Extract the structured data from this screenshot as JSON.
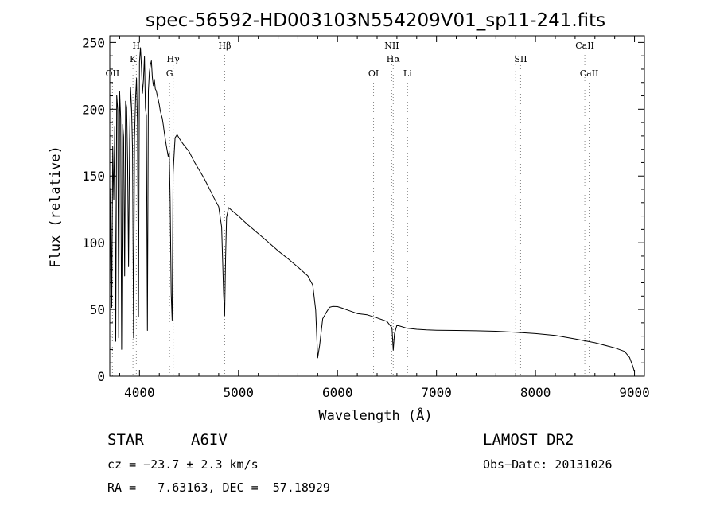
{
  "chart_data": {
    "type": "line",
    "title": "spec-56592-HD003103N554209V01_sp11-241.fits",
    "xlabel": "Wavelength (Å)",
    "ylabel": "Flux (relative)",
    "xlim": [
      3700,
      9100
    ],
    "ylim": [
      0,
      255
    ],
    "x_ticks": [
      4000,
      5000,
      6000,
      7000,
      8000,
      9000
    ],
    "y_ticks": [
      0,
      50,
      100,
      150,
      200,
      250
    ],
    "grid": false,
    "legend": "none",
    "line_color": "#000000",
    "marker_color": "#888888",
    "series": [
      {
        "x": [
          3700,
          3710,
          3720,
          3730,
          3740,
          3750,
          3760,
          3770,
          3780,
          3790,
          3800,
          3810,
          3820,
          3830,
          3840,
          3850,
          3860,
          3870,
          3880,
          3890,
          3900,
          3910,
          3920,
          3930,
          3940,
          3950,
          3960,
          3970,
          3980,
          3990,
          4000,
          4010,
          4020,
          4030,
          4040,
          4050,
          4060,
          4070,
          4080,
          4090,
          4100,
          4110,
          4120,
          4130,
          4140,
          4150,
          4160,
          4170,
          4180,
          4190,
          4200,
          4210,
          4220,
          4230,
          4240,
          4250,
          4260,
          4270,
          4280,
          4290,
          4300,
          4310,
          4320,
          4330,
          4340,
          4350,
          4360,
          4370,
          4380,
          4400,
          4420,
          4450,
          4500,
          4550,
          4600,
          4650,
          4700,
          4750,
          4800,
          4830,
          4850,
          4860,
          4870,
          4880,
          4900,
          4950,
          5000,
          5050,
          5100,
          5150,
          5200,
          5300,
          5400,
          5500,
          5600,
          5700,
          5750,
          5780,
          5800,
          5820,
          5850,
          5890,
          5920,
          5950,
          6000,
          6050,
          6100,
          6200,
          6300,
          6400,
          6500,
          6550,
          6563,
          6575,
          6600,
          6700,
          6800,
          6900,
          7000,
          7200,
          7400,
          7600,
          7800,
          8000,
          8200,
          8400,
          8600,
          8800,
          8900,
          8950,
          8980,
          9000
        ],
        "y": [
          60,
          140,
          50,
          170,
          130,
          185,
          25,
          210,
          200,
          30,
          215,
          195,
          22,
          190,
          180,
          75,
          205,
          200,
          160,
          80,
          175,
          215,
          200,
          170,
          30,
          180,
          210,
          225,
          190,
          45,
          235,
          245,
          230,
          210,
          220,
          238,
          200,
          195,
          35,
          215,
          230,
          235,
          238,
          225,
          218,
          222,
          214,
          212,
          208,
          205,
          202,
          198,
          196,
          194,
          190,
          185,
          180,
          175,
          170,
          165,
          168,
          130,
          60,
          40,
          150,
          165,
          178,
          180,
          182,
          180,
          178,
          175,
          170,
          162,
          155,
          148,
          140,
          132,
          125,
          110,
          60,
          45,
          90,
          120,
          128,
          125,
          122,
          118,
          114,
          110,
          106,
          99,
          92,
          86,
          80,
          74,
          68,
          50,
          15,
          25,
          45,
          50,
          53,
          53,
          52,
          50,
          48,
          45,
          44,
          42,
          40,
          36,
          20,
          33,
          40,
          38,
          37,
          36,
          35,
          34,
          33,
          32,
          31,
          30,
          29,
          27,
          25,
          22,
          20,
          16,
          10,
          5
        ],
        "style": "solid"
      }
    ],
    "markers": [
      {
        "wavelength": 3727,
        "label": "OII",
        "label_row": 3
      },
      {
        "wavelength": 3934,
        "label": "K",
        "label_row": 2
      },
      {
        "wavelength": 3968,
        "label": "H",
        "label_row": 1
      },
      {
        "wavelength": 4304,
        "label": "G",
        "label_row": 3
      },
      {
        "wavelength": 4340,
        "label": "Hγ",
        "label_row": 2
      },
      {
        "wavelength": 4861,
        "label": "Hβ",
        "label_row": 1
      },
      {
        "wavelength": 6364,
        "label": "OI",
        "label_row": 3
      },
      {
        "wavelength": 6548,
        "label": "NII",
        "label_row": 1
      },
      {
        "wavelength": 6563,
        "label": "Hα",
        "label_row": 2
      },
      {
        "wavelength": 6708,
        "label": "Li",
        "label_row": 3
      },
      {
        "wavelength": 7800,
        "label": "",
        "label_row": 0
      },
      {
        "wavelength": 7850,
        "label": "SII",
        "label_row": 2
      },
      {
        "wavelength": 8498,
        "label": "CaII",
        "label_row": 1
      },
      {
        "wavelength": 8542,
        "label": "CaII",
        "label_row": 3
      }
    ]
  },
  "info": {
    "object_type": "STAR",
    "spectral_class": "A6IV",
    "survey": "LAMOST DR2",
    "cz": "cz = −23.7 ± 2.3 km/s",
    "obs_date": "Obs−Date: 20131026",
    "coords": "RA =   7.63163, DEC =  57.18929"
  }
}
